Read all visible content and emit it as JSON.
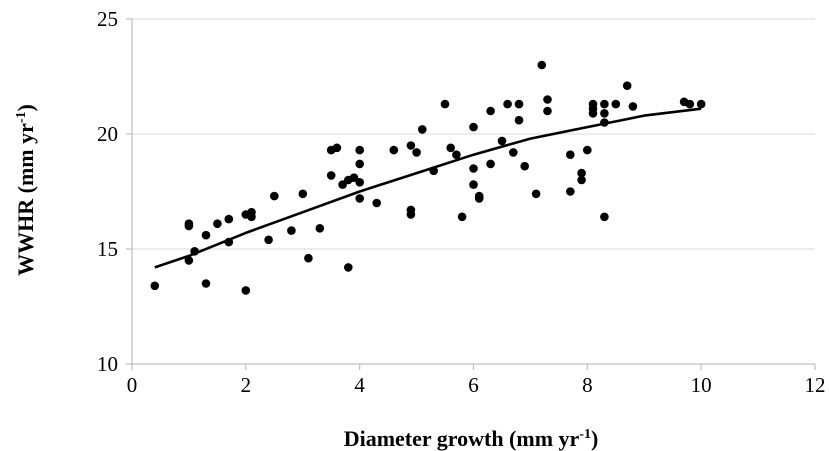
{
  "chart_data": {
    "type": "scatter",
    "title": "",
    "xlabel": {
      "pre": "Diameter growth (mm yr",
      "sup": "-1",
      "post": ")"
    },
    "ylabel": {
      "pre": "WWHR (mm yr",
      "sup": "-1",
      "post": ")"
    },
    "xlim": [
      0,
      12
    ],
    "ylim": [
      10,
      25
    ],
    "xticks": [
      "0",
      "2",
      "4",
      "6",
      "8",
      "10",
      "12"
    ],
    "yticks": [
      "10",
      "15",
      "20",
      "25"
    ],
    "grid": "horizontal",
    "legend": "none",
    "colors": {
      "points": "#000000",
      "trend": "#000000",
      "grid": "#d9d9d9",
      "axis": "#bfbfbf"
    },
    "series": [
      {
        "kind": "points",
        "points": [
          [
            0.4,
            13.4
          ],
          [
            1.0,
            16.1
          ],
          [
            1.0,
            16.0
          ],
          [
            1.0,
            14.5
          ],
          [
            1.1,
            14.9
          ],
          [
            1.3,
            15.6
          ],
          [
            1.3,
            13.5
          ],
          [
            1.5,
            16.1
          ],
          [
            1.7,
            16.3
          ],
          [
            1.7,
            15.3
          ],
          [
            2.0,
            16.5
          ],
          [
            2.0,
            13.2
          ],
          [
            2.1,
            16.6
          ],
          [
            2.1,
            16.4
          ],
          [
            2.4,
            15.4
          ],
          [
            2.5,
            17.3
          ],
          [
            2.8,
            15.8
          ],
          [
            3.0,
            17.4
          ],
          [
            3.1,
            14.6
          ],
          [
            3.3,
            15.9
          ],
          [
            3.5,
            19.3
          ],
          [
            3.5,
            18.2
          ],
          [
            3.6,
            19.4
          ],
          [
            3.7,
            17.8
          ],
          [
            3.8,
            18.0
          ],
          [
            3.8,
            14.2
          ],
          [
            3.9,
            18.1
          ],
          [
            4.0,
            19.3
          ],
          [
            4.0,
            18.7
          ],
          [
            4.0,
            17.9
          ],
          [
            4.0,
            17.2
          ],
          [
            4.3,
            17.0
          ],
          [
            4.6,
            19.3
          ],
          [
            4.9,
            19.5
          ],
          [
            4.9,
            16.7
          ],
          [
            4.9,
            16.5
          ],
          [
            5.0,
            19.2
          ],
          [
            5.1,
            20.2
          ],
          [
            5.3,
            18.4
          ],
          [
            5.5,
            21.3
          ],
          [
            5.6,
            19.4
          ],
          [
            5.7,
            19.1
          ],
          [
            5.8,
            16.4
          ],
          [
            6.0,
            20.3
          ],
          [
            6.0,
            18.5
          ],
          [
            6.0,
            17.8
          ],
          [
            6.1,
            17.3
          ],
          [
            6.1,
            17.2
          ],
          [
            6.3,
            21.0
          ],
          [
            6.3,
            18.7
          ],
          [
            6.5,
            19.7
          ],
          [
            6.6,
            21.3
          ],
          [
            6.7,
            19.2
          ],
          [
            6.8,
            21.3
          ],
          [
            6.8,
            20.6
          ],
          [
            6.9,
            18.6
          ],
          [
            7.1,
            17.4
          ],
          [
            7.2,
            23.0
          ],
          [
            7.3,
            21.5
          ],
          [
            7.3,
            21.0
          ],
          [
            7.7,
            19.1
          ],
          [
            7.7,
            17.5
          ],
          [
            7.9,
            18.3
          ],
          [
            7.9,
            18.0
          ],
          [
            8.0,
            19.3
          ],
          [
            8.1,
            21.3
          ],
          [
            8.1,
            21.1
          ],
          [
            8.1,
            20.9
          ],
          [
            8.3,
            21.3
          ],
          [
            8.3,
            20.9
          ],
          [
            8.3,
            20.5
          ],
          [
            8.3,
            16.4
          ],
          [
            8.5,
            21.3
          ],
          [
            8.7,
            22.1
          ],
          [
            8.8,
            21.2
          ],
          [
            9.7,
            21.4
          ],
          [
            9.8,
            21.3
          ],
          [
            10.0,
            21.3
          ]
        ]
      },
      {
        "kind": "trendline",
        "fit": "polynomial-2",
        "curve": [
          [
            0.4,
            14.2
          ],
          [
            1.0,
            14.7
          ],
          [
            2.0,
            15.7
          ],
          [
            3.0,
            16.6
          ],
          [
            4.0,
            17.5
          ],
          [
            5.0,
            18.3
          ],
          [
            6.0,
            19.1
          ],
          [
            7.0,
            19.8
          ],
          [
            8.0,
            20.3
          ],
          [
            9.0,
            20.8
          ],
          [
            10.0,
            21.1
          ]
        ]
      }
    ]
  }
}
